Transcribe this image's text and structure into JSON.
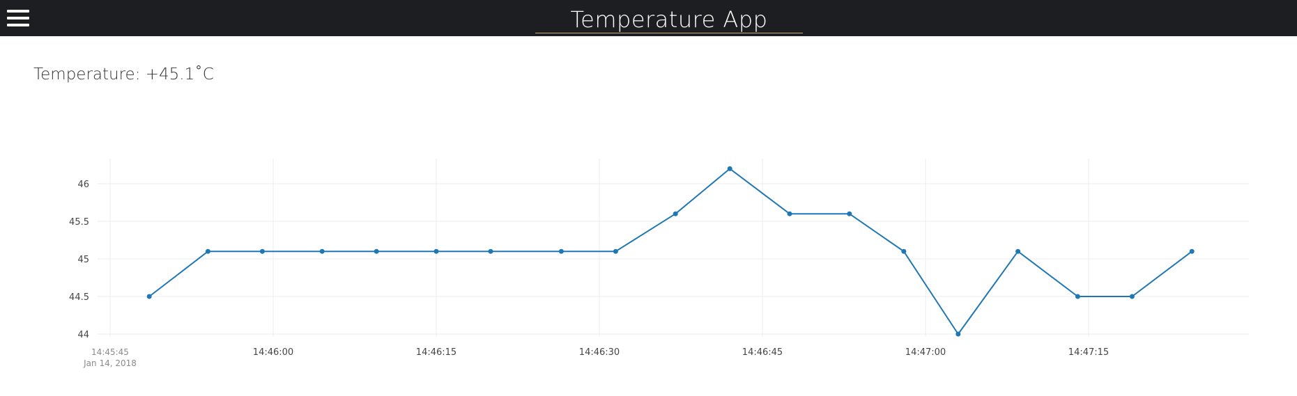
{
  "header": {
    "title": "Temperature App",
    "menu_icon": "hamburger-menu-icon",
    "background": "#1d1e22",
    "title_underline_color": "#c9b27a"
  },
  "reading": {
    "label": "Temperature: +45.1˚C"
  },
  "chart_data": {
    "type": "line",
    "title": "",
    "xlabel": "",
    "ylabel": "",
    "x_ticks": [
      "14:45:45",
      "14:46:00",
      "14:46:15",
      "14:46:30",
      "14:46:45",
      "14:47:00",
      "14:47:15"
    ],
    "x_first_tick_date": "Jan 14, 2018",
    "y_ticks": [
      "44",
      "44.5",
      "45",
      "45.5",
      "46"
    ],
    "xlim": [
      "14:45:45",
      "14:47:30"
    ],
    "ylim": [
      43.99,
      46.2
    ],
    "grid": true,
    "legend": "none",
    "series": [
      {
        "color": "#1f77b4",
        "x": [
          "14:45:48.6",
          "14:45:54",
          "14:45:59",
          "14:46:04.5",
          "14:46:09.5",
          "14:46:15",
          "14:46:20",
          "14:46:26.5",
          "14:46:31.5",
          "14:46:37",
          "14:46:42",
          "14:46:47.5",
          "14:46:53",
          "14:46:58",
          "14:47:03",
          "14:47:08.5",
          "14:47:14",
          "14:47:19",
          "14:47:24.5"
        ],
        "y": [
          44.5,
          45.1,
          45.1,
          45.1,
          45.1,
          45.1,
          45.1,
          45.1,
          45.1,
          45.6,
          46.2,
          45.6,
          45.6,
          45.1,
          44.0,
          45.1,
          44.5,
          44.5,
          45.1
        ]
      }
    ]
  }
}
